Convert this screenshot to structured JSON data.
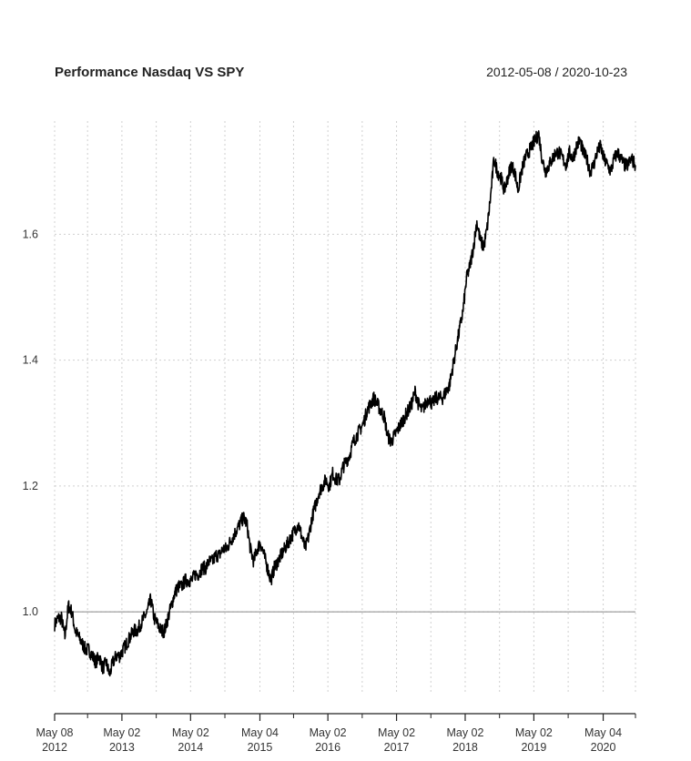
{
  "chart_data": {
    "type": "line",
    "title": "Performance Nasdaq VS SPY",
    "date_range": "2012-05-08 / 2020-10-23",
    "xlabel": "",
    "ylabel": "",
    "grid": true,
    "reference_line": 1.0,
    "ylim": [
      0.87,
      1.78
    ],
    "xlim": [
      2012.35,
      2020.81
    ],
    "y_ticks": [
      {
        "value": 1.0,
        "label": "1.0"
      },
      {
        "value": 1.2,
        "label": "1.2"
      },
      {
        "value": 1.4,
        "label": "1.4"
      },
      {
        "value": 1.6,
        "label": "1.6"
      }
    ],
    "x_ticks": [
      {
        "value": 2012.35,
        "line1": "May 08",
        "line2": "2012"
      },
      {
        "value": 2013.33,
        "line1": "May 02",
        "line2": "2013"
      },
      {
        "value": 2014.33,
        "line1": "May 02",
        "line2": "2014"
      },
      {
        "value": 2015.34,
        "line1": "May 04",
        "line2": "2015"
      },
      {
        "value": 2016.33,
        "line1": "May 02",
        "line2": "2016"
      },
      {
        "value": 2017.33,
        "line1": "May 02",
        "line2": "2017"
      },
      {
        "value": 2018.33,
        "line1": "May 02",
        "line2": "2018"
      },
      {
        "value": 2019.33,
        "line1": "May 02",
        "line2": "2019"
      },
      {
        "value": 2020.34,
        "line1": "May 04",
        "line2": "2020"
      }
    ],
    "minor_x_ticks": [
      2012.83,
      2013.83,
      2014.83,
      2015.83,
      2016.83,
      2017.83,
      2018.83,
      2019.83,
      2020.81
    ],
    "series": [
      {
        "name": "Nasdaq / SPY",
        "color": "#000000",
        "x": [
          2012.35,
          2012.4,
          2012.45,
          2012.5,
          2012.55,
          2012.6,
          2012.65,
          2012.7,
          2012.75,
          2012.8,
          2012.85,
          2012.9,
          2012.95,
          2013.0,
          2013.05,
          2013.1,
          2013.15,
          2013.2,
          2013.25,
          2013.3,
          2013.35,
          2013.4,
          2013.45,
          2013.5,
          2013.55,
          2013.6,
          2013.65,
          2013.7,
          2013.75,
          2013.8,
          2013.85,
          2013.9,
          2013.95,
          2014.0,
          2014.05,
          2014.1,
          2014.15,
          2014.2,
          2014.25,
          2014.3,
          2014.35,
          2014.4,
          2014.45,
          2014.5,
          2014.55,
          2014.6,
          2014.65,
          2014.7,
          2014.75,
          2014.8,
          2014.85,
          2014.9,
          2014.95,
          2015.0,
          2015.05,
          2015.1,
          2015.15,
          2015.2,
          2015.25,
          2015.3,
          2015.35,
          2015.4,
          2015.45,
          2015.5,
          2015.55,
          2015.6,
          2015.65,
          2015.7,
          2015.75,
          2015.8,
          2015.85,
          2015.9,
          2015.95,
          2016.0,
          2016.05,
          2016.1,
          2016.15,
          2016.2,
          2016.25,
          2016.3,
          2016.35,
          2016.4,
          2016.45,
          2016.5,
          2016.55,
          2016.6,
          2016.65,
          2016.7,
          2016.75,
          2016.8,
          2016.85,
          2016.9,
          2016.95,
          2017.0,
          2017.05,
          2017.1,
          2017.15,
          2017.2,
          2017.25,
          2017.3,
          2017.35,
          2017.4,
          2017.45,
          2017.5,
          2017.55,
          2017.6,
          2017.65,
          2017.7,
          2017.75,
          2017.8,
          2017.85,
          2017.9,
          2017.95,
          2018.0,
          2018.05,
          2018.1,
          2018.15,
          2018.2,
          2018.25,
          2018.3,
          2018.35,
          2018.4,
          2018.45,
          2018.5,
          2018.55,
          2018.6,
          2018.65,
          2018.7,
          2018.75,
          2018.8,
          2018.85,
          2018.9,
          2018.95,
          2019.0,
          2019.05,
          2019.1,
          2019.15,
          2019.2,
          2019.25,
          2019.3,
          2019.35,
          2019.4,
          2019.45,
          2019.5,
          2019.55,
          2019.6,
          2019.65,
          2019.7,
          2019.75,
          2019.8,
          2019.85,
          2019.9,
          2019.95,
          2020.0,
          2020.05,
          2020.1,
          2020.15,
          2020.2,
          2020.25,
          2020.3,
          2020.35,
          2020.4,
          2020.45,
          2020.5,
          2020.55,
          2020.6,
          2020.65,
          2020.7,
          2020.75,
          2020.81
        ],
        "values": [
          0.98,
          0.99,
          0.99,
          0.96,
          1.01,
          1.0,
          0.97,
          0.96,
          0.95,
          0.94,
          0.94,
          0.93,
          0.92,
          0.93,
          0.91,
          0.92,
          0.9,
          0.92,
          0.93,
          0.93,
          0.94,
          0.95,
          0.96,
          0.97,
          0.97,
          0.98,
          0.99,
          1.0,
          1.02,
          0.99,
          0.98,
          0.97,
          0.97,
          0.99,
          1.01,
          1.03,
          1.04,
          1.04,
          1.05,
          1.05,
          1.05,
          1.06,
          1.06,
          1.07,
          1.07,
          1.08,
          1.08,
          1.09,
          1.09,
          1.1,
          1.1,
          1.11,
          1.12,
          1.13,
          1.14,
          1.15,
          1.14,
          1.1,
          1.08,
          1.1,
          1.11,
          1.09,
          1.07,
          1.05,
          1.07,
          1.08,
          1.09,
          1.1,
          1.11,
          1.12,
          1.13,
          1.14,
          1.12,
          1.1,
          1.12,
          1.15,
          1.17,
          1.19,
          1.2,
          1.21,
          1.2,
          1.22,
          1.21,
          1.21,
          1.23,
          1.24,
          1.25,
          1.27,
          1.28,
          1.29,
          1.3,
          1.32,
          1.33,
          1.34,
          1.33,
          1.32,
          1.31,
          1.28,
          1.27,
          1.28,
          1.29,
          1.3,
          1.31,
          1.32,
          1.33,
          1.35,
          1.33,
          1.32,
          1.33,
          1.34,
          1.33,
          1.34,
          1.34,
          1.34,
          1.35,
          1.36,
          1.39,
          1.42,
          1.45,
          1.48,
          1.53,
          1.55,
          1.58,
          1.62,
          1.59,
          1.58,
          1.61,
          1.66,
          1.72,
          1.7,
          1.69,
          1.67,
          1.69,
          1.71,
          1.7,
          1.67,
          1.7,
          1.72,
          1.73,
          1.74,
          1.75,
          1.76,
          1.72,
          1.7,
          1.71,
          1.72,
          1.73,
          1.73,
          1.72,
          1.71,
          1.73,
          1.72,
          1.74,
          1.75,
          1.73,
          1.72,
          1.7,
          1.71,
          1.73,
          1.74,
          1.72,
          1.71,
          1.7,
          1.72,
          1.73,
          1.72,
          1.71,
          1.71,
          1.72,
          1.71
        ]
      }
    ]
  }
}
